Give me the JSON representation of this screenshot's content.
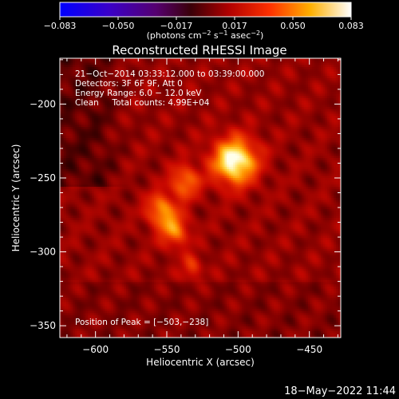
{
  "chart_data": {
    "type": "heatmap",
    "title": "Reconstructed RHESSI Image",
    "xlabel": "Heliocentric X (arcsec)",
    "ylabel": "Heliocentric Y (arcsec)",
    "xlim": [
      -625,
      -428
    ],
    "ylim": [
      -358,
      -169
    ],
    "xticks": [
      -600,
      -550,
      -500,
      -450
    ],
    "yticks": [
      -200,
      -250,
      -300,
      -350
    ],
    "xtick_labels": [
      "−600",
      "−550",
      "−500",
      "−450"
    ],
    "ytick_labels": [
      "−200",
      "−250",
      "−300",
      "−350"
    ],
    "colorbar": {
      "range": [
        -0.083,
        0.083
      ],
      "tick_labels": [
        "−0.083",
        "−0.050",
        "−0.017",
        "0.017",
        "0.050",
        "0.083"
      ],
      "label_prefix": "(photons cm",
      "label_exp1": "−2",
      "label_mid": " s",
      "label_exp2": "−1",
      "label_mid2": " asec",
      "label_exp3": "−2",
      "label_suffix": ")"
    },
    "annotations": [
      "21−Oct−2014 03:33:12.000 to 03:39:00.000",
      "Detectors: 3F 6F 9F, Att 0",
      "Energy Range: 6.0 − 12.0 keV",
      "Clean     Total counts: 4.99E+04"
    ],
    "peak_label": "Position of Peak = [−503,−238]",
    "peak": [
      -503,
      -238
    ],
    "sources": [
      {
        "x": -503,
        "y": -238,
        "sx": 11,
        "sy": 11,
        "amp": 1.0
      },
      {
        "x": -538,
        "y": -252,
        "sx": 7,
        "sy": 8,
        "amp": 0.55
      },
      {
        "x": -555,
        "y": -271,
        "sx": 7,
        "sy": 8,
        "amp": 0.6
      },
      {
        "x": -545,
        "y": -285,
        "sx": 7,
        "sy": 8,
        "amp": 0.55
      },
      {
        "x": -533,
        "y": -310,
        "sx": 5,
        "sy": 6,
        "amp": 0.35
      }
    ],
    "background_level": 0.22
  },
  "footer": {
    "timestamp": "18−May−2022 11:44"
  }
}
